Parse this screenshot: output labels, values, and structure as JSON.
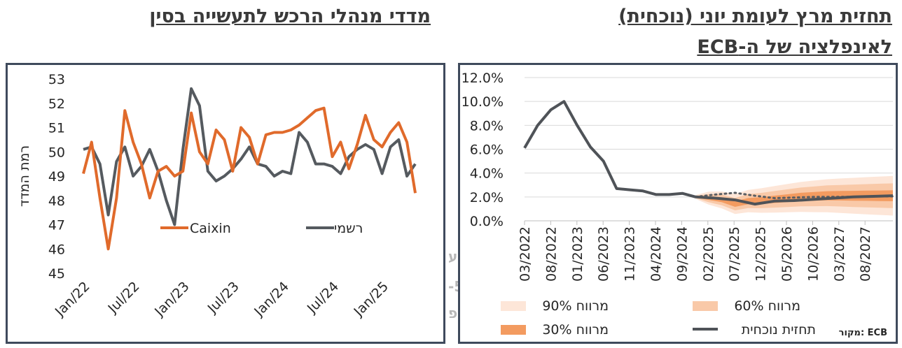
{
  "left_title": "מדדי מנהלי הרכש לתעשייה בסין",
  "right_title_line1": "תחזית מרץ לעומת יוני (נוכחית)",
  "right_title_line2": "לאינפלציה של ה-ECB",
  "chart_data": [
    {
      "type": "line",
      "ylabel": "רמת המדד",
      "ylim": [
        45,
        53
      ],
      "y_ticks": [
        "53",
        "52",
        "51",
        "50",
        "49",
        "48",
        "47",
        "46",
        "45"
      ],
      "x_tick_labels": [
        "Jan/22",
        "Jul/22",
        "Jan/23",
        "Jul/23",
        "Jan/24",
        "Jul/24",
        "Jan/25"
      ],
      "legend": [
        "Caixin",
        "רשמי"
      ],
      "colors": {
        "caixin": "#e06a2b",
        "official": "#555a5f"
      },
      "series": [
        {
          "name": "Caixin",
          "values": [
            49.1,
            50.4,
            48.1,
            46.0,
            48.1,
            51.7,
            50.4,
            49.5,
            48.1,
            49.2,
            49.4,
            49.0,
            49.2,
            51.6,
            50.0,
            49.5,
            50.9,
            50.5,
            49.2,
            51.0,
            50.6,
            49.5,
            50.7,
            50.8,
            50.8,
            50.9,
            51.1,
            51.4,
            51.7,
            51.8,
            49.8,
            50.4,
            49.3,
            50.3,
            51.5,
            50.5,
            50.2,
            50.8,
            51.2,
            50.4,
            48.3
          ]
        },
        {
          "name": "רשמי",
          "values": [
            50.1,
            50.2,
            49.5,
            47.4,
            49.6,
            50.2,
            49.0,
            49.4,
            50.1,
            49.2,
            48.0,
            47.0,
            50.1,
            52.6,
            51.9,
            49.2,
            48.8,
            49.0,
            49.3,
            49.7,
            50.2,
            49.5,
            49.4,
            49.0,
            49.2,
            49.1,
            50.8,
            50.4,
            49.5,
            49.5,
            49.4,
            49.1,
            49.8,
            50.1,
            50.3,
            50.1,
            49.1,
            50.2,
            50.5,
            49.0,
            49.5
          ]
        }
      ]
    },
    {
      "type": "line",
      "ylim": [
        0,
        12
      ],
      "y_ticks": [
        "12.0%",
        "10.0%",
        "8.0%",
        "6.0%",
        "4.0%",
        "2.0%",
        "0.0%"
      ],
      "x_tick_labels": [
        "03/2022",
        "08/2022",
        "01/2023",
        "06/2023",
        "11/2023",
        "04/2024",
        "09/2024",
        "02/2025",
        "07/2025",
        "12/2025",
        "05/2026",
        "10/2026",
        "03/2027",
        "08/2027"
      ],
      "colors": {
        "line": "#4f5358",
        "band90": "#fde6d8",
        "band60": "#f9c9a8",
        "band30": "#f39b60"
      },
      "history": [
        6.1,
        8.0,
        9.3,
        10.0,
        8.0,
        6.2,
        5.0,
        2.7,
        2.6,
        2.5,
        2.2,
        2.2,
        2.3
      ],
      "current": [
        2.0,
        1.9,
        1.75,
        1.4,
        1.65,
        1.7,
        1.8,
        1.9,
        2.0,
        2.05,
        2.1
      ],
      "march_dotted": [
        2.0,
        2.2,
        2.35,
        2.1,
        1.9,
        1.95,
        2.0,
        2.0,
        2.0,
        2.05,
        2.05
      ],
      "source": "מקור: ECB",
      "legend": [
        {
          "label": "מרווח 90%",
          "key": "band90"
        },
        {
          "label": "מרווח 60%",
          "key": "band60"
        },
        {
          "label": "מרווח 30%",
          "key": "band30"
        },
        {
          "label": "תחזית נוכחית",
          "key": "line"
        }
      ]
    }
  ]
}
